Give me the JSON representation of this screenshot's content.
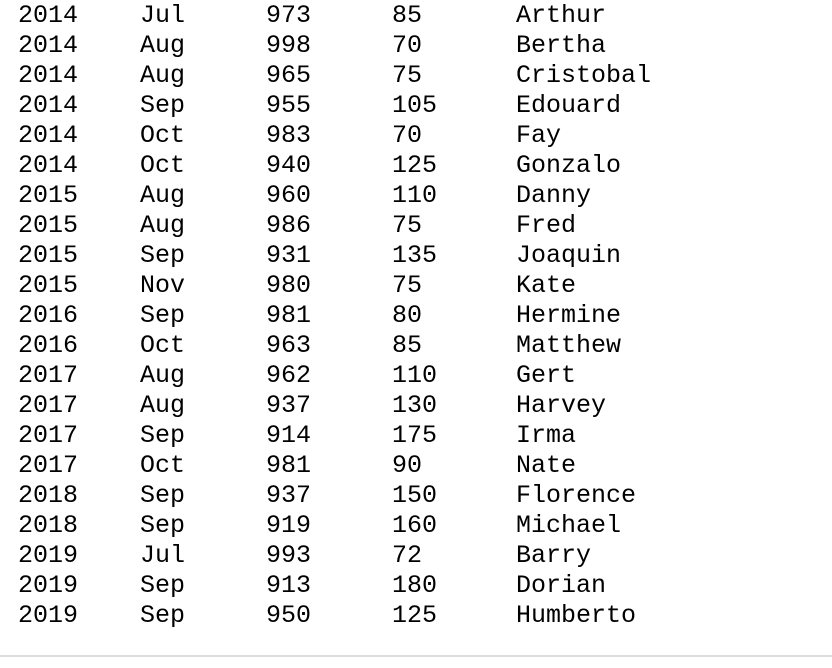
{
  "rows": [
    [
      "2014",
      "Jul",
      "973",
      "85",
      "Arthur"
    ],
    [
      "2014",
      "Aug",
      "998",
      "70",
      "Bertha"
    ],
    [
      "2014",
      "Aug",
      "965",
      "75",
      "Cristobal"
    ],
    [
      "2014",
      "Sep",
      "955",
      "105",
      "Edouard"
    ],
    [
      "2014",
      "Oct",
      "983",
      "70",
      "Fay"
    ],
    [
      "2014",
      "Oct",
      "940",
      "125",
      "Gonzalo"
    ],
    [
      "2015",
      "Aug",
      "960",
      "110",
      "Danny"
    ],
    [
      "2015",
      "Aug",
      "986",
      "75",
      "Fred"
    ],
    [
      "2015",
      "Sep",
      "931",
      "135",
      "Joaquin"
    ],
    [
      "2015",
      "Nov",
      "980",
      "75",
      "Kate"
    ],
    [
      "2016",
      "Sep",
      "981",
      "80",
      "Hermine"
    ],
    [
      "2016",
      "Oct",
      "963",
      "85",
      "Matthew"
    ],
    [
      "2017",
      "Aug",
      "962",
      "110",
      "Gert"
    ],
    [
      "2017",
      "Aug",
      "937",
      "130",
      "Harvey"
    ],
    [
      "2017",
      "Sep",
      "914",
      "175",
      "Irma"
    ],
    [
      "2017",
      "Oct",
      "981",
      "90",
      "Nate"
    ],
    [
      "2018",
      "Sep",
      "937",
      "150",
      "Florence"
    ],
    [
      "2018",
      "Sep",
      "919",
      "160",
      "Michael"
    ],
    [
      "2019",
      "Jul",
      "993",
      "72",
      "Barry"
    ],
    [
      "2019",
      "Sep",
      "913",
      "180",
      "Dorian"
    ],
    [
      "2019",
      "Sep",
      "950",
      "125",
      "Humberto"
    ]
  ]
}
